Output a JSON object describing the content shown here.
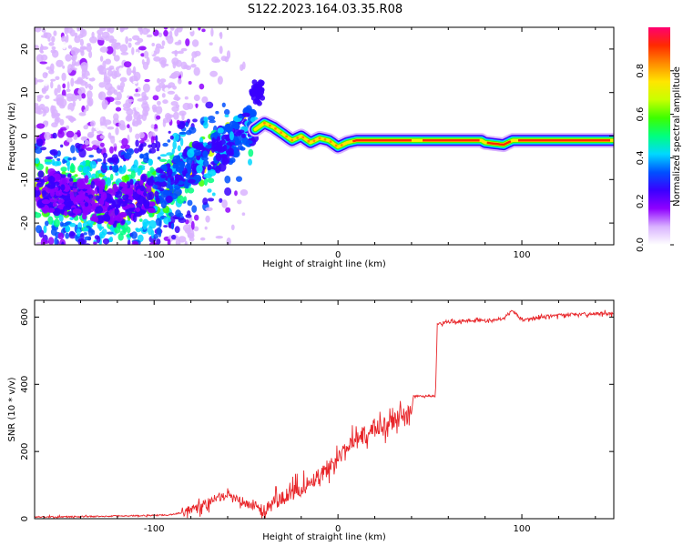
{
  "title": "S122.2023.164.03.35.R08",
  "chart_data": [
    {
      "type": "heatmap",
      "xlabel": "Height of straight line (km)",
      "ylabel": "Frequency (Hz)",
      "xlim": [
        -165,
        150
      ],
      "ylim": [
        -25,
        25
      ],
      "xticks": [
        -100,
        0,
        100
      ],
      "yticks": [
        -20,
        -10,
        0,
        10,
        20
      ],
      "grid": false,
      "colorbar": {
        "label": "Normalized spectral amplitude",
        "range": [
          0,
          1
        ],
        "ticks": [
          "0.0",
          "0.2",
          "0.4",
          "0.6",
          "0.8"
        ],
        "colormap": [
          "#ffffff",
          "#d9b3ff",
          "#8f00ff",
          "#3a00ff",
          "#0050ff",
          "#00d8ff",
          "#00ff7f",
          "#3cff00",
          "#c8ff00",
          "#ffe600",
          "#ff8c00",
          "#ff2a00",
          "#ff0070"
        ]
      },
      "ridge": {
        "description_free": true,
        "x": [
          -45,
          -40,
          -35,
          -30,
          -25,
          -20,
          -15,
          -10,
          -5,
          0,
          5,
          10,
          20,
          40,
          60,
          78,
          80,
          90,
          95,
          100,
          110,
          120,
          130,
          140,
          150
        ],
        "y": [
          1.5,
          3,
          2,
          0.5,
          -1,
          0,
          -1.5,
          -0.5,
          -1,
          -2.5,
          -1.5,
          -1,
          -1,
          -1,
          -1,
          -1,
          -1.5,
          -2,
          -1,
          -1,
          -1,
          -1,
          -1,
          -1,
          -1
        ]
      },
      "trend": {
        "x": [
          -165,
          -140,
          -120,
          -100,
          -80,
          -60,
          -45
        ],
        "y": [
          -12,
          -14,
          -16,
          -13,
          -7,
          -2,
          3
        ]
      }
    },
    {
      "type": "line",
      "xlabel": "Height of straight line (km)",
      "ylabel": "SNR (10 * v/v)",
      "xlim": [
        -165,
        150
      ],
      "ylim": [
        0,
        650
      ],
      "xticks": [
        -100,
        0,
        100
      ],
      "yticks": [
        0,
        200,
        400,
        600
      ],
      "grid": false,
      "series": [
        {
          "color": "#e8262a",
          "x": [
            -165,
            -140,
            -120,
            -100,
            -90,
            -80,
            -70,
            -60,
            -50,
            -40,
            -30,
            -20,
            -10,
            0,
            10,
            20,
            30,
            40,
            41,
            50,
            53,
            54,
            60,
            70,
            80,
            90,
            95,
            100,
            110,
            120,
            130,
            140,
            150
          ],
          "y": [
            5,
            6,
            8,
            10,
            12,
            25,
            50,
            70,
            45,
            30,
            60,
            90,
            130,
            180,
            230,
            270,
            290,
            310,
            365,
            365,
            365,
            580,
            585,
            590,
            590,
            595,
            620,
            590,
            600,
            605,
            608,
            610,
            610
          ]
        }
      ]
    }
  ]
}
